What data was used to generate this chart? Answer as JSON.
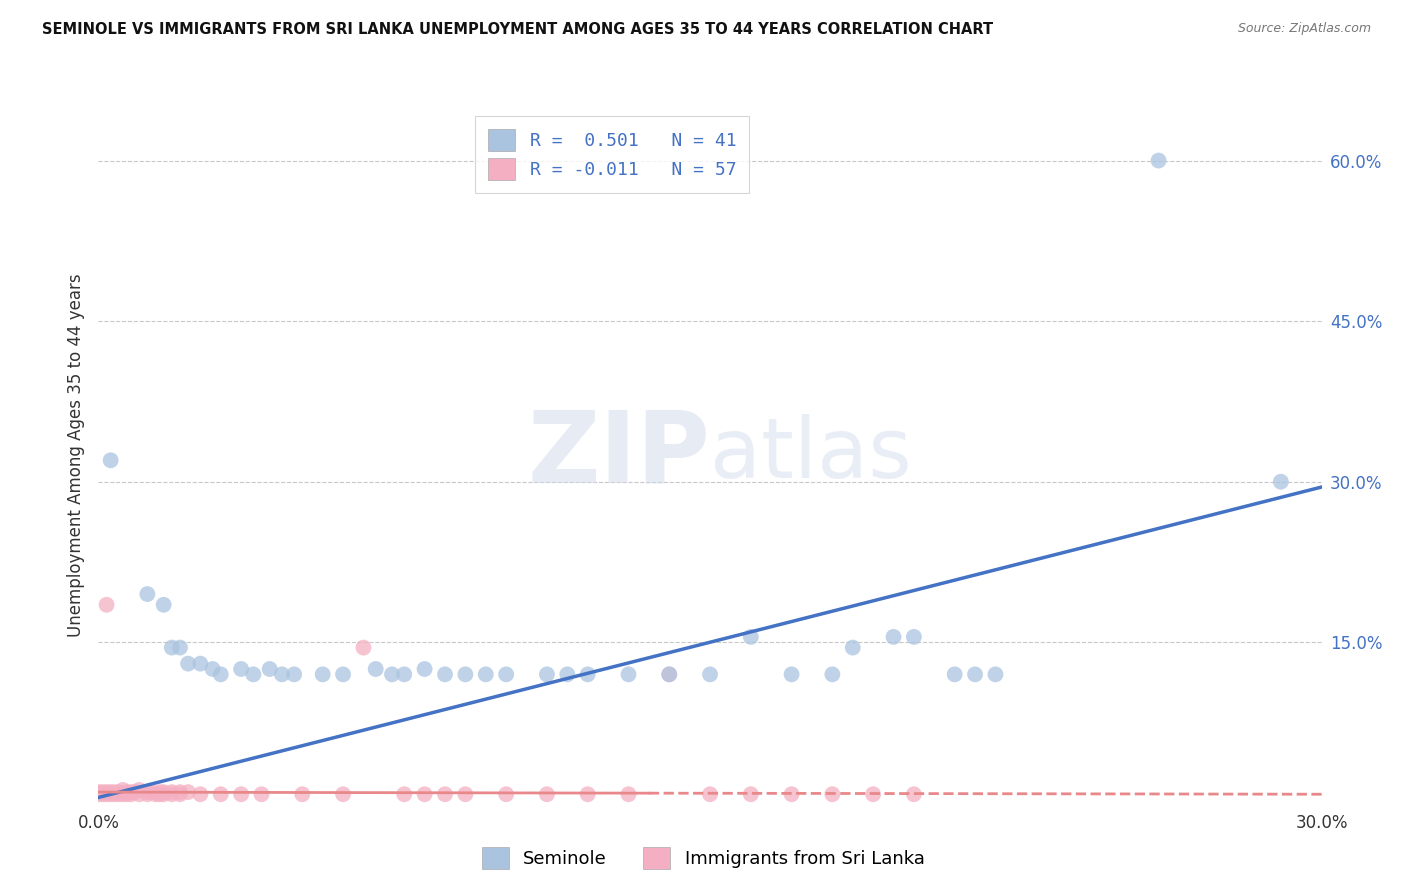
{
  "title": "SEMINOLE VS IMMIGRANTS FROM SRI LANKA UNEMPLOYMENT AMONG AGES 35 TO 44 YEARS CORRELATION CHART",
  "source": "Source: ZipAtlas.com",
  "ylabel": "Unemployment Among Ages 35 to 44 years",
  "xlim": [
    0.0,
    0.3
  ],
  "ylim": [
    0.0,
    0.65
  ],
  "ytick_right": [
    0.0,
    0.15,
    0.3,
    0.45,
    0.6
  ],
  "ytick_right_labels": [
    "",
    "15.0%",
    "30.0%",
    "45.0%",
    "60.0%"
  ],
  "background_color": "#ffffff",
  "legend_line1": "R =  0.501   N = 41",
  "legend_line2": "R = -0.011   N = 57",
  "seminole_color": "#aac4e0",
  "srilanka_color": "#f4b0c2",
  "seminole_line_color": "#4472c4",
  "srilanka_line_color": "#e8888a",
  "trend_line_seminole": [
    [
      0.0,
      0.005
    ],
    [
      0.3,
      0.295
    ]
  ],
  "trend_line_srilanka_solid": [
    [
      0.0,
      0.01
    ],
    [
      0.135,
      0.009
    ]
  ],
  "trend_line_srilanka_dash": [
    [
      0.135,
      0.009
    ],
    [
      0.3,
      0.008
    ]
  ],
  "seminole_scatter": [
    [
      0.003,
      0.32
    ],
    [
      0.012,
      0.195
    ],
    [
      0.016,
      0.185
    ],
    [
      0.018,
      0.145
    ],
    [
      0.02,
      0.145
    ],
    [
      0.022,
      0.13
    ],
    [
      0.025,
      0.13
    ],
    [
      0.028,
      0.125
    ],
    [
      0.03,
      0.12
    ],
    [
      0.035,
      0.125
    ],
    [
      0.038,
      0.12
    ],
    [
      0.042,
      0.125
    ],
    [
      0.045,
      0.12
    ],
    [
      0.048,
      0.12
    ],
    [
      0.055,
      0.12
    ],
    [
      0.06,
      0.12
    ],
    [
      0.068,
      0.125
    ],
    [
      0.072,
      0.12
    ],
    [
      0.075,
      0.12
    ],
    [
      0.08,
      0.125
    ],
    [
      0.085,
      0.12
    ],
    [
      0.09,
      0.12
    ],
    [
      0.095,
      0.12
    ],
    [
      0.1,
      0.12
    ],
    [
      0.11,
      0.12
    ],
    [
      0.115,
      0.12
    ],
    [
      0.12,
      0.12
    ],
    [
      0.13,
      0.12
    ],
    [
      0.14,
      0.12
    ],
    [
      0.15,
      0.12
    ],
    [
      0.16,
      0.155
    ],
    [
      0.17,
      0.12
    ],
    [
      0.18,
      0.12
    ],
    [
      0.185,
      0.145
    ],
    [
      0.195,
      0.155
    ],
    [
      0.2,
      0.155
    ],
    [
      0.21,
      0.12
    ],
    [
      0.215,
      0.12
    ],
    [
      0.22,
      0.12
    ],
    [
      0.26,
      0.6
    ],
    [
      0.29,
      0.3
    ]
  ],
  "srilanka_scatter": [
    [
      0.0,
      0.01
    ],
    [
      0.0,
      0.008
    ],
    [
      0.001,
      0.01
    ],
    [
      0.001,
      0.008
    ],
    [
      0.002,
      0.01
    ],
    [
      0.002,
      0.008
    ],
    [
      0.003,
      0.01
    ],
    [
      0.003,
      0.008
    ],
    [
      0.004,
      0.01
    ],
    [
      0.004,
      0.008
    ],
    [
      0.005,
      0.01
    ],
    [
      0.005,
      0.008
    ],
    [
      0.006,
      0.012
    ],
    [
      0.006,
      0.008
    ],
    [
      0.007,
      0.01
    ],
    [
      0.007,
      0.008
    ],
    [
      0.008,
      0.01
    ],
    [
      0.008,
      0.008
    ],
    [
      0.009,
      0.01
    ],
    [
      0.01,
      0.012
    ],
    [
      0.01,
      0.008
    ],
    [
      0.012,
      0.01
    ],
    [
      0.012,
      0.008
    ],
    [
      0.013,
      0.01
    ],
    [
      0.014,
      0.008
    ],
    [
      0.015,
      0.01
    ],
    [
      0.015,
      0.008
    ],
    [
      0.016,
      0.01
    ],
    [
      0.016,
      0.008
    ],
    [
      0.018,
      0.01
    ],
    [
      0.018,
      0.008
    ],
    [
      0.02,
      0.01
    ],
    [
      0.02,
      0.008
    ],
    [
      0.022,
      0.01
    ],
    [
      0.025,
      0.008
    ],
    [
      0.03,
      0.008
    ],
    [
      0.002,
      0.185
    ],
    [
      0.065,
      0.145
    ],
    [
      0.035,
      0.008
    ],
    [
      0.04,
      0.008
    ],
    [
      0.05,
      0.008
    ],
    [
      0.06,
      0.008
    ],
    [
      0.075,
      0.008
    ],
    [
      0.08,
      0.008
    ],
    [
      0.085,
      0.008
    ],
    [
      0.09,
      0.008
    ],
    [
      0.1,
      0.008
    ],
    [
      0.11,
      0.008
    ],
    [
      0.12,
      0.008
    ],
    [
      0.13,
      0.008
    ],
    [
      0.14,
      0.12
    ],
    [
      0.15,
      0.008
    ],
    [
      0.16,
      0.008
    ],
    [
      0.17,
      0.008
    ],
    [
      0.18,
      0.008
    ],
    [
      0.19,
      0.008
    ],
    [
      0.2,
      0.008
    ]
  ]
}
